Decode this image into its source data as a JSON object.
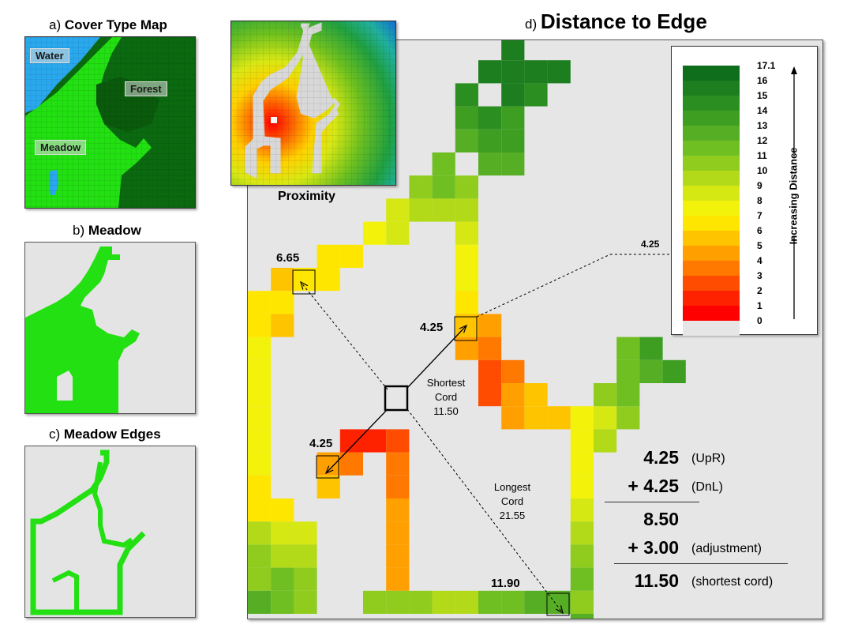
{
  "panels": {
    "a": {
      "prefix": "a) ",
      "title": "Cover Type Map",
      "labels": {
        "water": "Water",
        "forest": "Forest",
        "meadow": "Meadow"
      }
    },
    "b": {
      "prefix": "b) ",
      "title": "Meadow"
    },
    "c": {
      "prefix": "c) ",
      "title": "Meadow Edges"
    },
    "d": {
      "prefix": "d) ",
      "title": "Distance to Edge"
    },
    "proximity": {
      "title": "Proximity"
    }
  },
  "legend": {
    "title": "Increasing Distance",
    "entries": [
      {
        "label": "17.1",
        "color": "#0f6e1c"
      },
      {
        "label": "16",
        "color": "#1c7e1e"
      },
      {
        "label": "15",
        "color": "#2b8e20"
      },
      {
        "label": "14",
        "color": "#3e9e22"
      },
      {
        "label": "13",
        "color": "#56ae24"
      },
      {
        "label": "12",
        "color": "#6fbe22"
      },
      {
        "label": "11",
        "color": "#8fcc1e"
      },
      {
        "label": "10",
        "color": "#b2da18"
      },
      {
        "label": "9",
        "color": "#d6e814"
      },
      {
        "label": "8",
        "color": "#f2f20a"
      },
      {
        "label": "7",
        "color": "#ffe600"
      },
      {
        "label": "6",
        "color": "#ffc400"
      },
      {
        "label": "5",
        "color": "#ffa000"
      },
      {
        "label": "4",
        "color": "#ff7800"
      },
      {
        "label": "3",
        "color": "#ff4c00"
      },
      {
        "label": "2",
        "color": "#ff2200"
      },
      {
        "label": "1",
        "color": "#ff0000"
      },
      {
        "label": "0",
        "color": "#e6e6e6"
      }
    ]
  },
  "annotations": {
    "v_665": "6.65",
    "v_425_upper": "4.25",
    "v_425_lower": "4.25",
    "v_1190": "11.90",
    "v_425_legend": "4.25",
    "shortest": {
      "line1": "Shortest",
      "line2": "Cord",
      "value": "11.50"
    },
    "longest": {
      "line1": "Longest",
      "line2": "Cord",
      "value": "21.55"
    }
  },
  "calculation": [
    {
      "value": "4.25",
      "note": "(UpR)"
    },
    {
      "value": "+ 4.25",
      "note": "(DnL)"
    },
    {
      "value": "8.50",
      "note": ""
    },
    {
      "value": "+ 3.00",
      "note": "(adjustment)"
    },
    {
      "value": "11.50",
      "note": "(shortest cord)"
    }
  ]
}
